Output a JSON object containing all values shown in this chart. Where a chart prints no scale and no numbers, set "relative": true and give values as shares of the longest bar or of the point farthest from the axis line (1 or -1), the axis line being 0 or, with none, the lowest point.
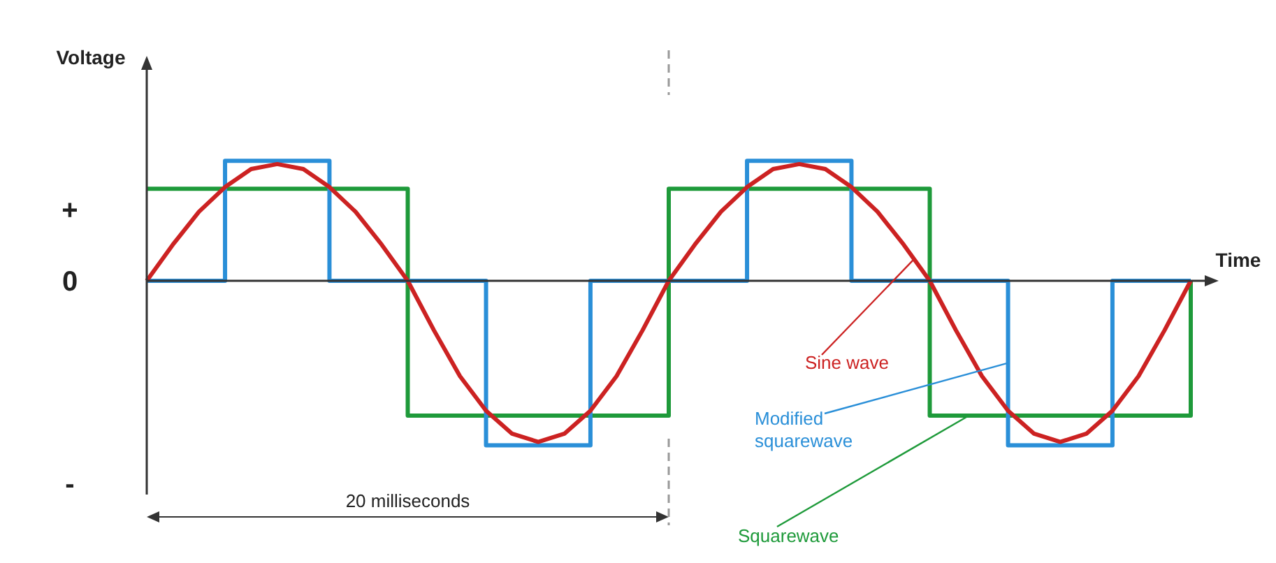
{
  "chart_data": {
    "type": "line",
    "xlabel": "Time",
    "ylabel": "Voltage",
    "relative": true,
    "tick_labels": "y",
    "legend": false,
    "marker": "none",
    "line_style": "solid",
    "categories": [
      null,
      null,
      null,
      null,
      null,
      null,
      null,
      null,
      null,
      null,
      null,
      null,
      null,
      null,
      null,
      null,
      null,
      null,
      null,
      null,
      null,
      null,
      null,
      null,
      null,
      null,
      null,
      null,
      null,
      null,
      null,
      null,
      null,
      null,
      null,
      null,
      null,
      null,
      null,
      null,
      null
    ],
    "series": [
      {
        "name": "Squarewave",
        "type": "step",
        "color": "#1e9a3a",
        "values": [
          0.56,
          0.56,
          0.56,
          0.56,
          0.56,
          0.56,
          0.56,
          0.56,
          0.56,
          0.56,
          -0.82,
          -0.82,
          -0.82,
          -0.82,
          -0.82,
          -0.82,
          -0.82,
          -0.82,
          -0.82,
          -0.82,
          0.56,
          0.56,
          0.56,
          0.56,
          0.56,
          0.56,
          0.56,
          0.56,
          0.56,
          0.56,
          -0.82,
          -0.82,
          -0.82,
          -0.82,
          -0.82,
          -0.82,
          -0.82,
          -0.82,
          -0.82,
          -0.82,
          0
        ]
      },
      {
        "name": "Modified squarewave",
        "type": "step",
        "color": "#2a8fd8",
        "values": [
          0,
          0,
          0,
          0.73,
          0.73,
          0.73,
          0.73,
          0,
          0,
          0,
          0,
          0,
          0,
          -1,
          -1,
          -1,
          -1,
          0,
          0,
          0,
          0,
          0,
          0,
          0.73,
          0.73,
          0.73,
          0.73,
          0,
          0,
          0,
          0,
          0,
          0,
          -1,
          -1,
          -1,
          -1,
          0,
          0,
          0,
          0
        ]
      },
      {
        "name": "Sine wave",
        "color": "#cc2222",
        "values": [
          0,
          0.22,
          0.42,
          0.57,
          0.68,
          0.71,
          0.68,
          0.57,
          0.42,
          0.22,
          0,
          -0.3,
          -0.58,
          -0.79,
          -0.93,
          -0.98,
          -0.93,
          -0.79,
          -0.58,
          -0.3,
          0,
          0.22,
          0.42,
          0.57,
          0.68,
          0.71,
          0.68,
          0.57,
          0.42,
          0.22,
          0,
          -0.3,
          -0.58,
          -0.79,
          -0.93,
          -0.98,
          -0.93,
          -0.79,
          -0.58,
          -0.3,
          0
        ]
      }
    ],
    "annotations": [
      "+",
      "0",
      "-",
      "20 milliseconds"
    ]
  }
}
